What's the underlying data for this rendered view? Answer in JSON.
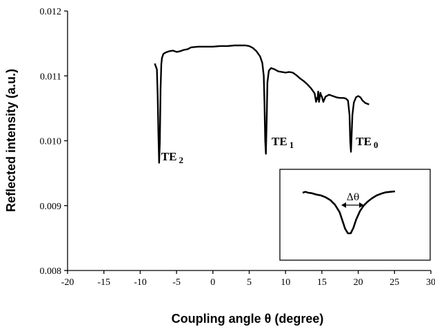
{
  "chart_data": {
    "type": "line",
    "xlabel": "Coupling angle θ (degree)",
    "ylabel": "Reflected intensity (a.u.)",
    "xlim": [
      -20,
      30
    ],
    "ylim": [
      0.008,
      0.012
    ],
    "x_ticks": [
      "-20",
      "-15",
      "-10",
      "-5",
      "0",
      "5",
      "10",
      "15",
      "20",
      "25",
      "30"
    ],
    "y_ticks": [
      "0.008",
      "0.009",
      "0.010",
      "0.011",
      "0.012"
    ],
    "grid": false,
    "series": [
      {
        "x": [
          -8.0,
          -7.7,
          -7.6,
          -7.5,
          -7.4,
          -7.3,
          -7.2,
          -7.1,
          -7.0,
          -6.8,
          -6.5,
          -6.0,
          -5.5,
          -5.0,
          -4.5,
          -4.0,
          -3.5,
          -3.0,
          -2.0,
          -1.0,
          0.0,
          1.0,
          2.0,
          3.0,
          3.5,
          4.0,
          4.5,
          5.0,
          5.5,
          6.0,
          6.5,
          6.8,
          7.0,
          7.1,
          7.2,
          7.3,
          7.4,
          7.5,
          7.7,
          8.0,
          8.5,
          9.0,
          9.5,
          10.0,
          10.5,
          11.0,
          11.5,
          12.0,
          12.5,
          13.0,
          13.5,
          14.0,
          14.2,
          14.3,
          14.4,
          14.5,
          14.6,
          14.7,
          14.8,
          14.9,
          15.0,
          15.2,
          15.5,
          16.0,
          16.5,
          17.0,
          17.5,
          18.0,
          18.3,
          18.6,
          18.8,
          18.9,
          19.0,
          19.1,
          19.2,
          19.4,
          19.7,
          20.0,
          20.3,
          20.6,
          21.0,
          21.5
        ],
        "y": [
          0.01119,
          0.0111,
          0.0107,
          0.0101,
          0.00966,
          0.01,
          0.0108,
          0.01118,
          0.01128,
          0.01134,
          0.01136,
          0.01138,
          0.01139,
          0.01137,
          0.01138,
          0.0114,
          0.01141,
          0.01144,
          0.01145,
          0.01145,
          0.01145,
          0.01146,
          0.01146,
          0.01147,
          0.01147,
          0.01147,
          0.01147,
          0.01146,
          0.01143,
          0.01138,
          0.0113,
          0.0112,
          0.011,
          0.0106,
          0.01,
          0.0098,
          0.0103,
          0.0109,
          0.01108,
          0.01112,
          0.0111,
          0.01107,
          0.01106,
          0.01105,
          0.01106,
          0.01105,
          0.01101,
          0.01096,
          0.01092,
          0.01087,
          0.01081,
          0.01073,
          0.0106,
          0.01066,
          0.01064,
          0.01076,
          0.0106,
          0.01066,
          0.01074,
          0.0107,
          0.01068,
          0.0106,
          0.01068,
          0.01071,
          0.01069,
          0.01067,
          0.01066,
          0.01066,
          0.01065,
          0.01062,
          0.0104,
          0.01,
          0.00983,
          0.0101,
          0.0104,
          0.01059,
          0.01067,
          0.01069,
          0.01067,
          0.01062,
          0.01058,
          0.01056
        ]
      }
    ],
    "annotations": [
      {
        "label": "TE",
        "sub": "2",
        "x": -7.4,
        "y": 0.0097
      },
      {
        "label": "TE",
        "sub": "1",
        "x": 7.8,
        "y": 0.00993
      },
      {
        "label": "TE",
        "sub": "0",
        "x": 19.4,
        "y": 0.00993
      }
    ],
    "inset": {
      "label": "Δθ",
      "profile_x": [
        0.0,
        0.03,
        0.06,
        0.1,
        0.15,
        0.2,
        0.25,
        0.3,
        0.35,
        0.4,
        0.43,
        0.46,
        0.49,
        0.52,
        0.55,
        0.58,
        0.62,
        0.66,
        0.7,
        0.75,
        0.8,
        0.85,
        0.9,
        0.95,
        1.0
      ],
      "profile_y": [
        0.06,
        0.04,
        0.06,
        0.07,
        0.1,
        0.12,
        0.16,
        0.22,
        0.32,
        0.48,
        0.66,
        0.84,
        0.94,
        0.94,
        0.82,
        0.64,
        0.46,
        0.34,
        0.26,
        0.18,
        0.12,
        0.08,
        0.05,
        0.04,
        0.03
      ]
    }
  }
}
